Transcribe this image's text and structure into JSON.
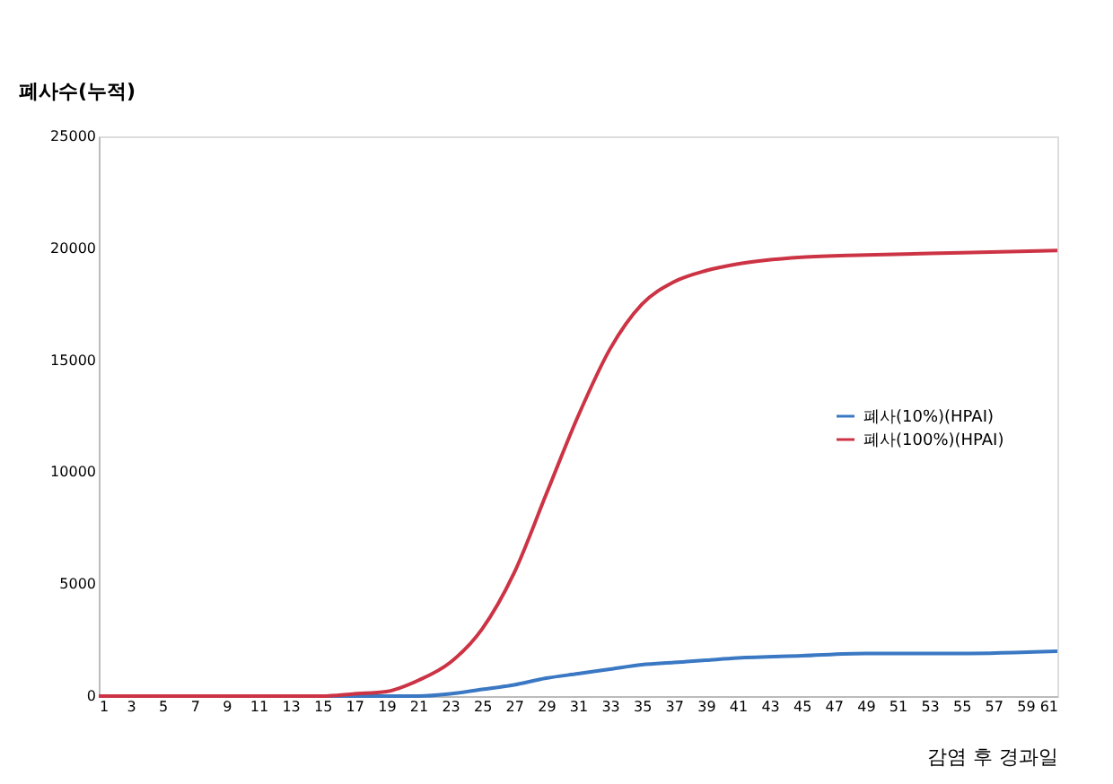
{
  "chart_data": {
    "type": "line",
    "ylabel": "폐사수(누적)",
    "xlabel": "감염 후 경과일",
    "x": [
      1,
      5,
      9,
      13,
      15,
      17,
      19,
      21,
      23,
      25,
      27,
      29,
      31,
      33,
      35,
      37,
      39,
      41,
      45,
      49,
      55,
      61
    ],
    "series": [
      {
        "name": "폐사(10%)(HPAI)",
        "color": "#3a78c3",
        "values": [
          null,
          null,
          null,
          0,
          0,
          0,
          0,
          0,
          100,
          300,
          500,
          800,
          1000,
          1200,
          1400,
          1500,
          1600,
          1700,
          1800,
          1900,
          1900,
          2000
        ]
      },
      {
        "name": "폐사(100%)(HPAI)",
        "color": "#cc3344",
        "values": [
          0,
          0,
          0,
          0,
          0,
          100,
          200,
          700,
          1500,
          3000,
          5500,
          9000,
          12500,
          15500,
          17500,
          18500,
          19000,
          19300,
          19600,
          19700,
          19800,
          19900
        ]
      }
    ],
    "xlim": [
      1,
      61
    ],
    "xticks": [
      1,
      3,
      5,
      7,
      9,
      11,
      13,
      15,
      17,
      19,
      21,
      23,
      25,
      27,
      29,
      31,
      33,
      35,
      37,
      39,
      41,
      43,
      45,
      47,
      49,
      51,
      53,
      55,
      57,
      59,
      61
    ],
    "ylim": [
      0,
      25000
    ],
    "yticks": [
      0,
      5000,
      10000,
      15000,
      20000,
      25000
    ],
    "grid": false,
    "legend": "right",
    "marker": "none",
    "line_style": "solid"
  }
}
